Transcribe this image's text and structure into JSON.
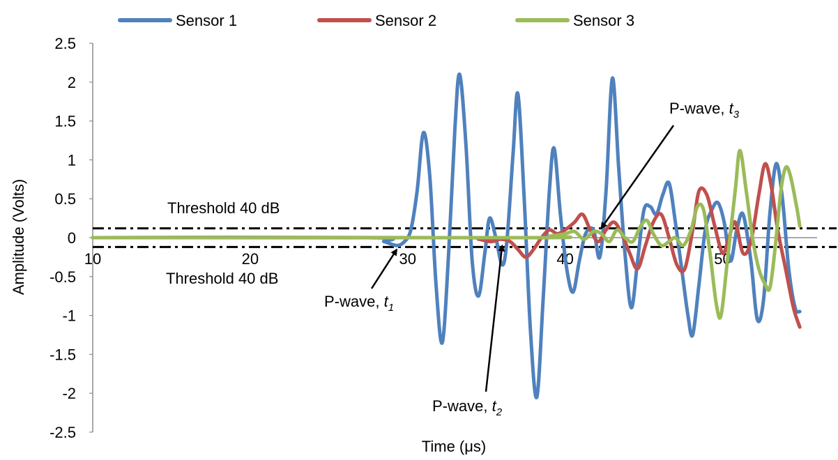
{
  "chart_data": {
    "type": "line",
    "title": "",
    "xlabel": "Time (μs)",
    "ylabel": "Amplitude (Volts)",
    "xlim": [
      10,
      56
    ],
    "ylim": [
      -2.5,
      2.5
    ],
    "x_ticks": [
      "10",
      "20",
      "30",
      "40",
      "50"
    ],
    "y_ticks": [
      "2.5",
      "2",
      "1.5",
      "1",
      "0.5",
      "0",
      "-0.5",
      "-1",
      "-1.5",
      "-2",
      "-2.5"
    ],
    "grid": false,
    "legend_position": "top",
    "colors": {
      "Sensor 1": "#4F81BD",
      "Sensor 2": "#C0504D",
      "Sensor 3": "#9BBB59"
    },
    "series": [
      {
        "name": "Sensor 1",
        "points": [
          [
            10,
            0
          ],
          [
            27.5,
            0
          ],
          [
            28.5,
            -0.05
          ],
          [
            29.3,
            -0.1
          ],
          [
            29.8,
            -0.05
          ],
          [
            30.2,
            0.1
          ],
          [
            30.6,
            0.6
          ],
          [
            31.0,
            1.35
          ],
          [
            31.4,
            0.8
          ],
          [
            31.8,
            -0.6
          ],
          [
            32.2,
            -1.35
          ],
          [
            32.6,
            -0.2
          ],
          [
            33.0,
            1.4
          ],
          [
            33.3,
            2.1
          ],
          [
            33.7,
            1.2
          ],
          [
            34.1,
            -0.3
          ],
          [
            34.5,
            -0.75
          ],
          [
            34.9,
            -0.2
          ],
          [
            35.2,
            0.25
          ],
          [
            35.6,
            0.0
          ],
          [
            36.0,
            -0.35
          ],
          [
            36.3,
            -0.05
          ],
          [
            36.7,
            1.1
          ],
          [
            37.0,
            1.85
          ],
          [
            37.4,
            0.5
          ],
          [
            37.8,
            -1.2
          ],
          [
            38.2,
            -2.05
          ],
          [
            38.6,
            -0.8
          ],
          [
            39.0,
            0.6
          ],
          [
            39.3,
            1.15
          ],
          [
            39.7,
            0.3
          ],
          [
            40.1,
            -0.4
          ],
          [
            40.5,
            -0.7
          ],
          [
            40.9,
            -0.3
          ],
          [
            41.3,
            0.05
          ],
          [
            41.8,
            0.1
          ],
          [
            42.2,
            -0.25
          ],
          [
            42.6,
            0.6
          ],
          [
            43.0,
            2.05
          ],
          [
            43.4,
            0.9
          ],
          [
            43.8,
            -0.2
          ],
          [
            44.2,
            -0.9
          ],
          [
            44.6,
            -0.3
          ],
          [
            45.0,
            0.35
          ],
          [
            45.4,
            0.4
          ],
          [
            45.8,
            0.3
          ],
          [
            46.2,
            0.55
          ],
          [
            46.6,
            0.7
          ],
          [
            47.0,
            0.2
          ],
          [
            47.4,
            -0.4
          ],
          [
            47.8,
            -1.0
          ],
          [
            48.1,
            -1.25
          ],
          [
            48.5,
            -0.6
          ],
          [
            48.9,
            0.1
          ],
          [
            49.3,
            0.35
          ],
          [
            49.7,
            0.45
          ],
          [
            50.1,
            0.2
          ],
          [
            50.5,
            -0.3
          ],
          [
            50.9,
            0.1
          ],
          [
            51.3,
            0.3
          ],
          [
            51.8,
            -0.3
          ],
          [
            52.2,
            -1.05
          ],
          [
            52.6,
            -0.8
          ],
          [
            53.0,
            0.3
          ],
          [
            53.4,
            0.95
          ],
          [
            53.8,
            0.5
          ],
          [
            54.2,
            -0.4
          ],
          [
            54.6,
            -0.9
          ],
          [
            54.9,
            -0.95
          ]
        ]
      },
      {
        "name": "Sensor 2",
        "points": [
          [
            10,
            0
          ],
          [
            33.5,
            0
          ],
          [
            34.5,
            -0.02
          ],
          [
            35.3,
            -0.05
          ],
          [
            35.9,
            -0.02
          ],
          [
            36.5,
            -0.05
          ],
          [
            37.0,
            -0.15
          ],
          [
            37.5,
            -0.25
          ],
          [
            38.0,
            -0.15
          ],
          [
            38.5,
            0.0
          ],
          [
            39.0,
            0.1
          ],
          [
            39.5,
            0.05
          ],
          [
            40.0,
            0.1
          ],
          [
            40.6,
            0.2
          ],
          [
            41.1,
            0.3
          ],
          [
            41.6,
            0.1
          ],
          [
            42.1,
            -0.05
          ],
          [
            42.6,
            0.1
          ],
          [
            43.1,
            0.2
          ],
          [
            43.6,
            0.05
          ],
          [
            44.1,
            -0.2
          ],
          [
            44.6,
            -0.4
          ],
          [
            45.1,
            -0.1
          ],
          [
            45.6,
            0.2
          ],
          [
            46.1,
            0.3
          ],
          [
            46.6,
            0.0
          ],
          [
            47.1,
            -0.35
          ],
          [
            47.6,
            -0.4
          ],
          [
            48.1,
            0.1
          ],
          [
            48.5,
            0.6
          ],
          [
            49.0,
            0.55
          ],
          [
            49.5,
            0.15
          ],
          [
            50.0,
            -0.2
          ],
          [
            50.4,
            0.0
          ],
          [
            50.8,
            0.2
          ],
          [
            51.3,
            -0.2
          ],
          [
            51.8,
            -0.05
          ],
          [
            52.3,
            0.55
          ],
          [
            52.7,
            0.95
          ],
          [
            53.1,
            0.65
          ],
          [
            53.5,
            0.1
          ],
          [
            54.0,
            -0.4
          ],
          [
            54.5,
            -0.9
          ],
          [
            54.9,
            -1.15
          ]
        ]
      },
      {
        "name": "Sensor 3",
        "points": [
          [
            10,
            0
          ],
          [
            38.0,
            0
          ],
          [
            39.0,
            0.02
          ],
          [
            40.0,
            0.05
          ],
          [
            40.6,
            0.08
          ],
          [
            41.2,
            -0.02
          ],
          [
            41.8,
            0.08
          ],
          [
            42.3,
            0.05
          ],
          [
            42.8,
            -0.05
          ],
          [
            43.3,
            0.1
          ],
          [
            43.8,
            0.0
          ],
          [
            44.3,
            -0.05
          ],
          [
            44.8,
            0.15
          ],
          [
            45.2,
            0.22
          ],
          [
            45.6,
            0.05
          ],
          [
            46.1,
            -0.1
          ],
          [
            46.6,
            -0.05
          ],
          [
            47.0,
            0.0
          ],
          [
            47.5,
            -0.1
          ],
          [
            48.0,
            0.1
          ],
          [
            48.4,
            0.4
          ],
          [
            48.8,
            0.35
          ],
          [
            49.2,
            -0.2
          ],
          [
            49.6,
            -0.85
          ],
          [
            49.9,
            -1.0
          ],
          [
            50.3,
            -0.3
          ],
          [
            50.8,
            0.6
          ],
          [
            51.1,
            1.12
          ],
          [
            51.5,
            0.6
          ],
          [
            51.9,
            0.0
          ],
          [
            52.3,
            -0.4
          ],
          [
            52.7,
            -0.6
          ],
          [
            53.0,
            -0.65
          ],
          [
            53.3,
            -0.2
          ],
          [
            53.7,
            0.6
          ],
          [
            54.0,
            0.9
          ],
          [
            54.3,
            0.8
          ],
          [
            54.7,
            0.4
          ],
          [
            54.9,
            0.15
          ]
        ]
      }
    ],
    "thresholds": [
      {
        "label": "Threshold 40 dB",
        "value": 0.12
      },
      {
        "label": "Threshold 40 dB",
        "value": -0.12
      }
    ],
    "annotations": [
      {
        "text": "P-wave, ",
        "sub_var": "t",
        "sub": "1",
        "target": [
          29.3,
          -0.1
        ]
      },
      {
        "text": "P-wave, ",
        "sub_var": "t",
        "sub": "2",
        "target": [
          36.0,
          -0.05
        ]
      },
      {
        "text": "P-wave, ",
        "sub_var": "t",
        "sub": "3",
        "target": [
          42.3,
          0.05
        ]
      }
    ]
  }
}
